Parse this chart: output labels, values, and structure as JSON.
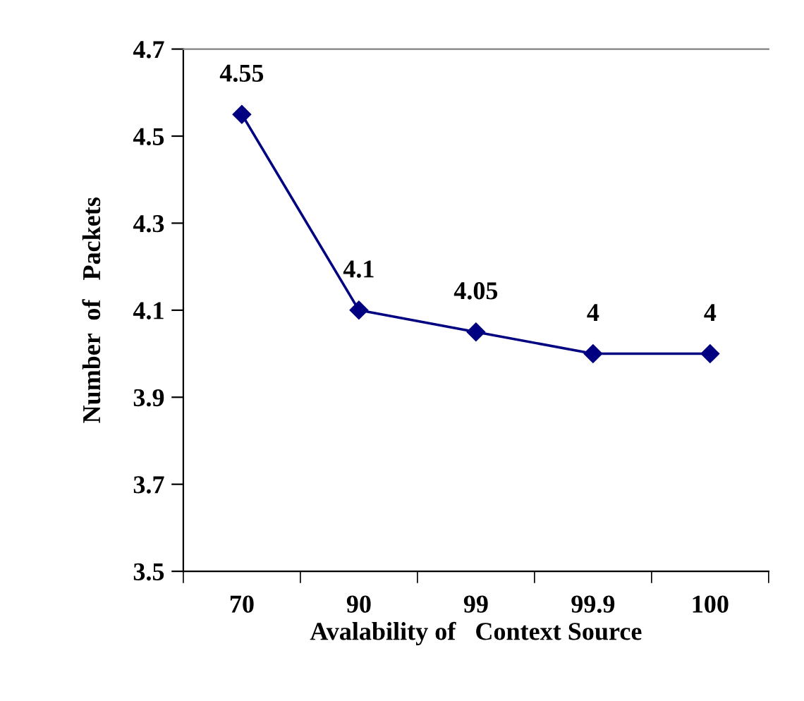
{
  "chart_data": {
    "type": "line",
    "xlabel": "Avalability of   Context Source",
    "ylabel": "Number  of   Packets",
    "categories": [
      "70",
      "90",
      "99",
      "99.9",
      "100"
    ],
    "series": [
      {
        "color": "#000080",
        "values": [
          4.55,
          4.1,
          4.05,
          4,
          4
        ]
      }
    ],
    "ylim": [
      3.5,
      4.7
    ],
    "yticks": [
      3.5,
      3.7,
      3.9,
      4.1,
      4.3,
      4.5,
      4.7
    ],
    "marker": "diamond",
    "line_style": "solid",
    "data_labels": true,
    "grid": false,
    "legend": false
  }
}
